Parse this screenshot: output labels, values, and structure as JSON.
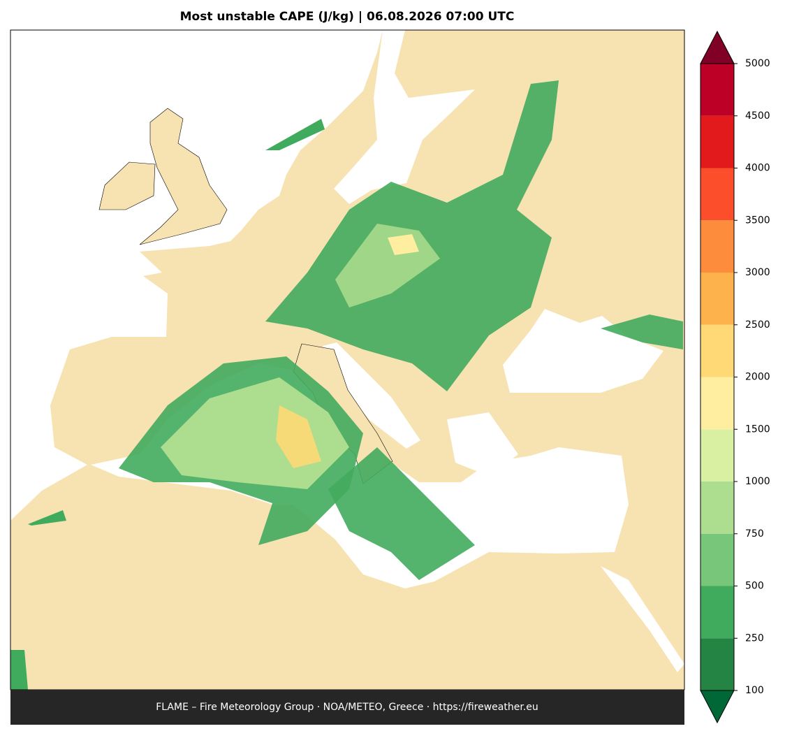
{
  "title": "Most unstable CAPE (J/kg)  |  06.08.2026 07:00 UTC",
  "footer": "FLAME – Fire Meteorology Group · NOA/METEO, Greece · https://fireweather.eu",
  "colorbar": {
    "levels": [
      100,
      250,
      500,
      750,
      1000,
      1500,
      2000,
      2500,
      3000,
      3500,
      4000,
      4500,
      5000
    ],
    "colors": [
      "#238443",
      "#41ab5d",
      "#78c679",
      "#addd8e",
      "#d9f0a3",
      "#ffeda0",
      "#fed976",
      "#feb24c",
      "#fd8d3c",
      "#fc4e2a",
      "#e31a1c",
      "#bd0026"
    ],
    "under_color": "#006837",
    "over_color": "#800026"
  }
}
